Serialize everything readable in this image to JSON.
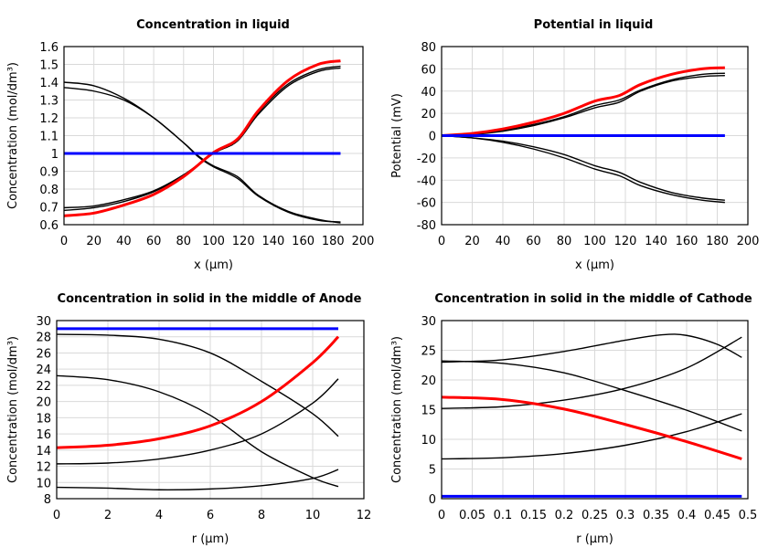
{
  "chart_data": [
    {
      "type": "line",
      "title": "Concentration in liquid",
      "xlabel": "x (µm)",
      "ylabel": "Concentration (mol/dm³)",
      "xlim": [
        0,
        200
      ],
      "ylim": [
        0.6,
        1.6
      ],
      "xticks": [
        "0",
        "20",
        "40",
        "60",
        "80",
        "100",
        "120",
        "140",
        "160",
        "180",
        "200"
      ],
      "yticks": [
        "0.6",
        "0.7",
        "0.8",
        "0.9",
        "1",
        "1.1",
        "1.2",
        "1.3",
        "1.4",
        "1.5",
        "1.6"
      ],
      "grid": true,
      "series": [
        {
          "color": "#000000",
          "x": [
            0,
            20,
            40,
            60,
            80,
            90,
            100,
            116,
            130,
            150,
            170,
            185
          ],
          "y": [
            1.4,
            1.38,
            1.31,
            1.2,
            1.06,
            0.98,
            0.925,
            0.86,
            0.76,
            0.67,
            0.625,
            0.615
          ]
        },
        {
          "color": "#000000",
          "x": [
            0,
            20,
            40,
            60,
            80,
            90,
            100,
            116,
            130,
            150,
            170,
            185
          ],
          "y": [
            1.37,
            1.35,
            1.3,
            1.2,
            1.06,
            0.985,
            0.93,
            0.87,
            0.765,
            0.675,
            0.63,
            0.61
          ]
        },
        {
          "color": "#000000",
          "x": [
            0,
            20,
            40,
            60,
            80,
            100,
            116,
            130,
            150,
            170,
            185
          ],
          "y": [
            0.695,
            0.705,
            0.74,
            0.79,
            0.88,
            1.0,
            1.07,
            1.22,
            1.38,
            1.46,
            1.48
          ]
        },
        {
          "color": "#000000",
          "x": [
            0,
            20,
            40,
            60,
            80,
            100,
            116,
            130,
            150,
            170,
            185
          ],
          "y": [
            0.68,
            0.695,
            0.73,
            0.785,
            0.875,
            1.0,
            1.07,
            1.23,
            1.39,
            1.47,
            1.49
          ]
        },
        {
          "color": "#ff0000",
          "x": [
            0,
            20,
            40,
            60,
            80,
            100,
            116,
            130,
            150,
            170,
            185
          ],
          "y": [
            0.65,
            0.665,
            0.71,
            0.77,
            0.87,
            1.005,
            1.08,
            1.24,
            1.41,
            1.5,
            1.52
          ]
        },
        {
          "color": "#0000ff",
          "x": [
            0,
            185
          ],
          "y": [
            1.0,
            1.0
          ]
        }
      ]
    },
    {
      "type": "line",
      "title": "Potential in liquid",
      "xlabel": "x (µm)",
      "ylabel": "Potential (mV)",
      "xlim": [
        0,
        200
      ],
      "ylim": [
        -80,
        80
      ],
      "xticks": [
        "0",
        "20",
        "40",
        "60",
        "80",
        "100",
        "120",
        "140",
        "160",
        "180",
        "200"
      ],
      "yticks": [
        "-80",
        "-60",
        "-40",
        "-20",
        "0",
        "20",
        "40",
        "60",
        "80"
      ],
      "grid": true,
      "series": [
        {
          "color": "#000000",
          "x": [
            0,
            20,
            40,
            60,
            80,
            100,
            116,
            130,
            150,
            170,
            185
          ],
          "y": [
            0,
            1,
            5,
            10,
            17,
            27,
            32,
            41,
            50,
            55,
            56
          ]
        },
        {
          "color": "#000000",
          "x": [
            0,
            20,
            40,
            60,
            80,
            100,
            116,
            130,
            150,
            170,
            185
          ],
          "y": [
            0,
            1,
            4,
            9,
            16,
            25,
            30,
            40,
            49,
            53,
            54
          ]
        },
        {
          "color": "#000000",
          "x": [
            0,
            20,
            40,
            60,
            80,
            100,
            116,
            130,
            150,
            170,
            185
          ],
          "y": [
            0,
            -2,
            -5,
            -10,
            -17,
            -27,
            -33,
            -42,
            -51,
            -56,
            -58
          ]
        },
        {
          "color": "#000000",
          "x": [
            0,
            20,
            40,
            60,
            80,
            100,
            116,
            130,
            150,
            170,
            185
          ],
          "y": [
            0,
            -2,
            -6,
            -12,
            -20,
            -30,
            -36,
            -45,
            -53,
            -58,
            -60
          ]
        },
        {
          "color": "#ff0000",
          "x": [
            0,
            20,
            40,
            60,
            80,
            100,
            116,
            130,
            150,
            170,
            185
          ],
          "y": [
            0,
            2,
            6,
            12,
            20,
            31,
            36,
            46,
            55,
            60,
            61
          ]
        },
        {
          "color": "#0000ff",
          "x": [
            0,
            185
          ],
          "y": [
            0,
            0
          ]
        }
      ]
    },
    {
      "type": "line",
      "title": "Concentration in solid in the middle of Anode",
      "xlabel": "r (µm)",
      "ylabel": "Concentration (mol/dm³)",
      "xlim": [
        0,
        12
      ],
      "ylim": [
        8,
        30
      ],
      "xticks": [
        "0",
        "2",
        "4",
        "6",
        "8",
        "10",
        "12"
      ],
      "yticks": [
        "8",
        "10",
        "12",
        "14",
        "16",
        "18",
        "20",
        "22",
        "24",
        "26",
        "28",
        "30"
      ],
      "grid": true,
      "series": [
        {
          "color": "#000000",
          "x": [
            0,
            2,
            4,
            6,
            8,
            10,
            11
          ],
          "y": [
            28.3,
            28.2,
            27.7,
            26.0,
            22.5,
            18.5,
            15.7
          ]
        },
        {
          "color": "#000000",
          "x": [
            0,
            2,
            4,
            6,
            8,
            10,
            11
          ],
          "y": [
            23.2,
            22.7,
            21.2,
            18.3,
            13.8,
            10.6,
            9.5
          ]
        },
        {
          "color": "#000000",
          "x": [
            0,
            2,
            4,
            6,
            8,
            10,
            11
          ],
          "y": [
            12.3,
            12.4,
            12.9,
            14.0,
            16.0,
            19.8,
            22.8
          ]
        },
        {
          "color": "#000000",
          "x": [
            0,
            2,
            4,
            6,
            8,
            10,
            11
          ],
          "y": [
            9.4,
            9.3,
            9.1,
            9.2,
            9.6,
            10.5,
            11.6
          ]
        },
        {
          "color": "#ff0000",
          "x": [
            0,
            2,
            4,
            6,
            8,
            10,
            11
          ],
          "y": [
            14.3,
            14.6,
            15.4,
            17.0,
            20.0,
            24.8,
            28.0
          ]
        },
        {
          "color": "#0000ff",
          "x": [
            0,
            11
          ],
          "y": [
            29,
            29
          ]
        }
      ]
    },
    {
      "type": "line",
      "title": "Concentration in solid in the middle of Cathode",
      "xlabel": "r (µm)",
      "ylabel": "Concentration (mol/dm³)",
      "xlim": [
        0,
        0.5
      ],
      "ylim": [
        0,
        30
      ],
      "xticks": [
        "0",
        "0.05",
        "0.1",
        "0.15",
        "0.2",
        "0.25",
        "0.3",
        "0.35",
        "0.4",
        "0.45",
        "0.5"
      ],
      "yticks": [
        "0",
        "5",
        "10",
        "15",
        "20",
        "25",
        "30"
      ],
      "grid": true,
      "series": [
        {
          "color": "#000000",
          "x": [
            0,
            0.1,
            0.2,
            0.3,
            0.36,
            0.4,
            0.45,
            0.49
          ],
          "y": [
            23.0,
            23.4,
            24.8,
            26.7,
            27.6,
            27.5,
            26.0,
            23.8
          ]
        },
        {
          "color": "#000000",
          "x": [
            0,
            0.1,
            0.2,
            0.3,
            0.4,
            0.49
          ],
          "y": [
            23.2,
            22.8,
            21.2,
            18.2,
            14.9,
            11.4
          ]
        },
        {
          "color": "#000000",
          "x": [
            0,
            0.1,
            0.2,
            0.3,
            0.4,
            0.49
          ],
          "y": [
            15.2,
            15.5,
            16.6,
            18.6,
            22.0,
            27.2
          ]
        },
        {
          "color": "#000000",
          "x": [
            0,
            0.1,
            0.2,
            0.3,
            0.4,
            0.49
          ],
          "y": [
            6.7,
            6.9,
            7.6,
            9.0,
            11.3,
            14.3
          ]
        },
        {
          "color": "#ff0000",
          "x": [
            0,
            0.1,
            0.2,
            0.3,
            0.4,
            0.49
          ],
          "y": [
            17.1,
            16.7,
            15.1,
            12.5,
            9.6,
            6.7
          ]
        },
        {
          "color": "#0000ff",
          "x": [
            0,
            0.49
          ],
          "y": [
            0.4,
            0.4
          ]
        }
      ]
    }
  ]
}
